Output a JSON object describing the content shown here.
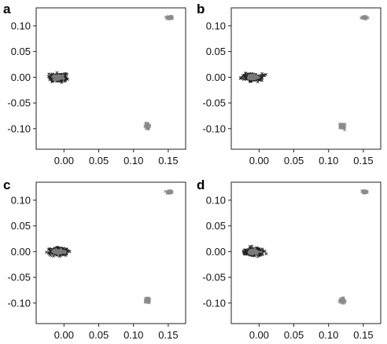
{
  "figure": {
    "panel_letters": [
      "a",
      "b",
      "c",
      "d"
    ]
  },
  "chart_data": [
    {
      "panel": "a",
      "type": "scatter",
      "title": "",
      "xlabel": "",
      "ylabel": "",
      "xlim": [
        -0.04,
        0.175
      ],
      "ylim": [
        -0.14,
        0.135
      ],
      "x_ticks": [
        0.0,
        0.05,
        0.1,
        0.15
      ],
      "x_tick_labels": [
        "0.00",
        "0.05",
        "0.10",
        "0.15"
      ],
      "y_ticks": [
        0.1,
        0.05,
        0.0,
        -0.05,
        -0.1
      ],
      "y_tick_labels": [
        "0.10",
        "0.05",
        "0.00",
        "-0.05",
        "-0.10"
      ],
      "grid": false,
      "series": [
        {
          "center": [
            -0.008,
            0.0
          ],
          "spread": [
            0.011,
            0.006
          ],
          "n": 240,
          "color": "#222222",
          "core_color": "#7a7a7a"
        },
        {
          "center": [
            0.12,
            -0.095
          ],
          "spread": [
            0.003,
            0.005
          ],
          "n": 50,
          "color": "#8a8a8a"
        },
        {
          "center": [
            0.152,
            0.116
          ],
          "spread": [
            0.004,
            0.002
          ],
          "n": 50,
          "color": "#8a8a8a"
        }
      ]
    },
    {
      "panel": "b",
      "type": "scatter",
      "title": "",
      "xlabel": "",
      "ylabel": "",
      "xlim": [
        -0.04,
        0.175
      ],
      "ylim": [
        -0.14,
        0.135
      ],
      "x_ticks": [
        0.0,
        0.05,
        0.1,
        0.15
      ],
      "x_tick_labels": [
        "0.00",
        "0.05",
        "0.10",
        "0.15"
      ],
      "y_ticks": [
        0.1,
        0.05,
        0.0,
        -0.05,
        -0.1
      ],
      "y_tick_labels": [
        "0.10",
        "0.05",
        "0.00",
        "-0.05",
        "-0.10"
      ],
      "grid": false,
      "series": [
        {
          "center": [
            -0.008,
            0.0
          ],
          "spread": [
            0.011,
            0.006
          ],
          "n": 240,
          "color": "#222222",
          "core_color": "#7a7a7a"
        },
        {
          "center": [
            0.12,
            -0.095
          ],
          "spread": [
            0.003,
            0.005
          ],
          "n": 50,
          "color": "#8a8a8a"
        },
        {
          "center": [
            0.152,
            0.116
          ],
          "spread": [
            0.004,
            0.002
          ],
          "n": 50,
          "color": "#8a8a8a"
        }
      ]
    },
    {
      "panel": "c",
      "type": "scatter",
      "title": "",
      "xlabel": "",
      "ylabel": "",
      "xlim": [
        -0.04,
        0.175
      ],
      "ylim": [
        -0.14,
        0.135
      ],
      "x_ticks": [
        0.0,
        0.05,
        0.1,
        0.15
      ],
      "x_tick_labels": [
        "0.00",
        "0.05",
        "0.10",
        "0.15"
      ],
      "y_ticks": [
        0.1,
        0.05,
        0.0,
        -0.05,
        -0.1
      ],
      "y_tick_labels": [
        "0.10",
        "0.05",
        "0.00",
        "-0.05",
        "-0.10"
      ],
      "grid": false,
      "series": [
        {
          "center": [
            -0.008,
            0.0
          ],
          "spread": [
            0.011,
            0.006
          ],
          "n": 240,
          "color": "#222222",
          "core_color": "#7a7a7a"
        },
        {
          "center": [
            0.12,
            -0.095
          ],
          "spread": [
            0.003,
            0.005
          ],
          "n": 50,
          "color": "#8a8a8a"
        },
        {
          "center": [
            0.152,
            0.116
          ],
          "spread": [
            0.004,
            0.002
          ],
          "n": 50,
          "color": "#8a8a8a"
        }
      ]
    },
    {
      "panel": "d",
      "type": "scatter",
      "title": "",
      "xlabel": "",
      "ylabel": "",
      "xlim": [
        -0.04,
        0.175
      ],
      "ylim": [
        -0.14,
        0.135
      ],
      "x_ticks": [
        0.0,
        0.05,
        0.1,
        0.15
      ],
      "x_tick_labels": [
        "0.00",
        "0.05",
        "0.10",
        "0.15"
      ],
      "y_ticks": [
        0.1,
        0.05,
        0.0,
        -0.05,
        -0.1
      ],
      "y_tick_labels": [
        "0.10",
        "0.05",
        "0.00",
        "-0.05",
        "-0.10"
      ],
      "grid": false,
      "series": [
        {
          "center": [
            -0.008,
            0.0
          ],
          "spread": [
            0.011,
            0.006
          ],
          "n": 240,
          "color": "#222222",
          "core_color": "#7a7a7a"
        },
        {
          "center": [
            0.12,
            -0.095
          ],
          "spread": [
            0.003,
            0.005
          ],
          "n": 50,
          "color": "#8a8a8a"
        },
        {
          "center": [
            0.152,
            0.116
          ],
          "spread": [
            0.004,
            0.002
          ],
          "n": 50,
          "color": "#8a8a8a"
        }
      ]
    }
  ]
}
